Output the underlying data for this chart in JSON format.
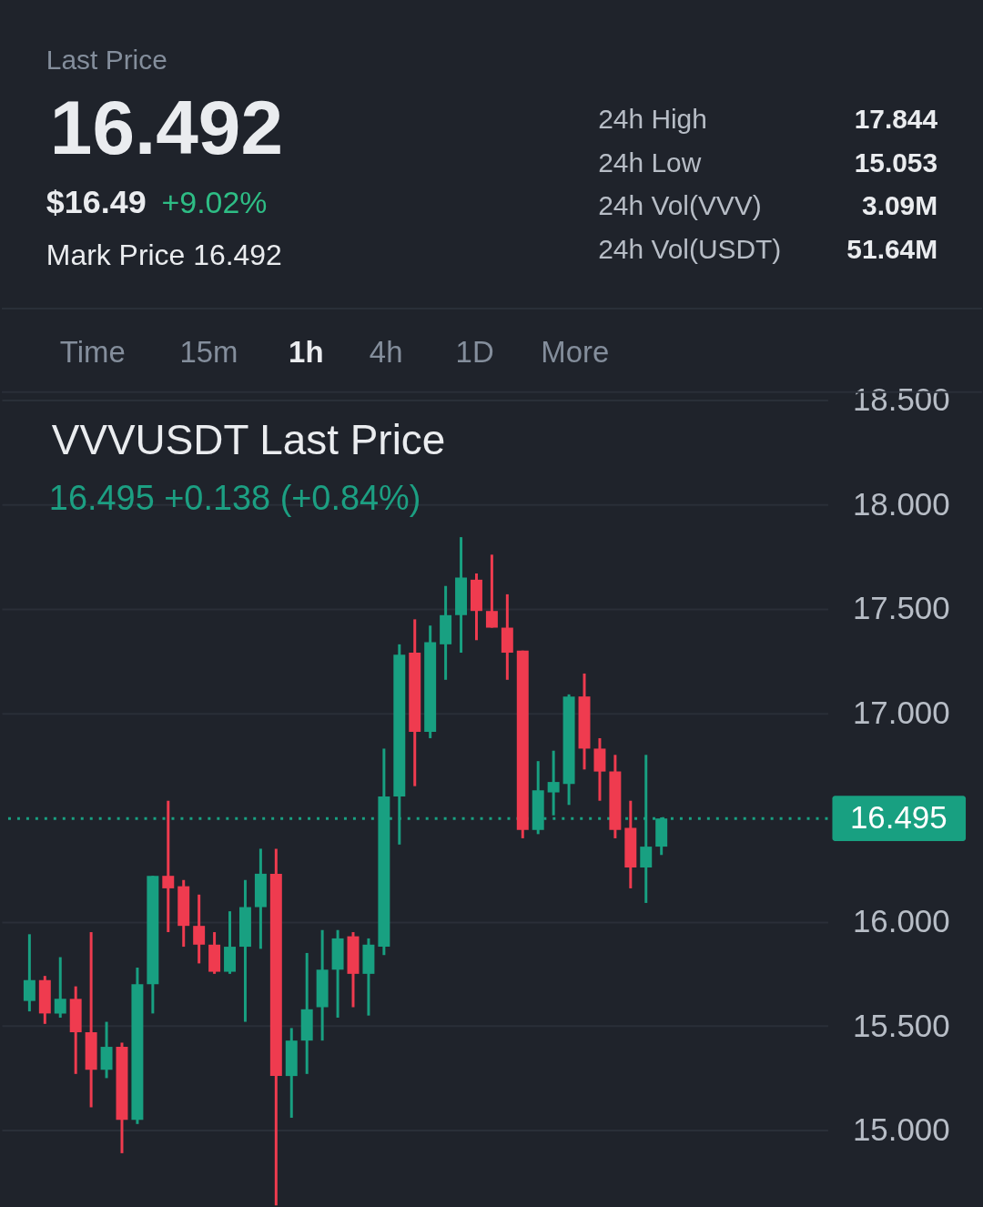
{
  "chart_data": [
    {
      "type": "other",
      "title": "Last Price",
      "annotations": [
        "16.492",
        "$16.49",
        "+9.02%",
        "Mark Price 16.492",
        "24h High",
        "17.844",
        "24h Low",
        "15.053",
        "24h Vol(VVV)",
        "3.09M",
        "24h Vol(USDT)",
        "51.64M",
        "Time",
        "15m",
        "1h",
        "4h",
        "1D",
        "More"
      ]
    },
    {
      "type": "candlestick",
      "title": "VVVUSDT Last Price",
      "subtitle": "16.495 +0.138 (+0.84%)",
      "categories": [
        null,
        null,
        null,
        null,
        null,
        null,
        null,
        null,
        null,
        null,
        null,
        null,
        null,
        null,
        null,
        null,
        null,
        null,
        null,
        null,
        null,
        null,
        null,
        null,
        null,
        null,
        null,
        null,
        null,
        null,
        null,
        null,
        null,
        null,
        null,
        null,
        null,
        null,
        null,
        null,
        null,
        null,
        null,
        null,
        null,
        null,
        null,
        null,
        null,
        null,
        null,
        null,
        null
      ],
      "ohlc": [
        null,
        [
          15.62,
          15.94,
          15.57,
          15.72
        ],
        [
          15.72,
          15.74,
          15.51,
          15.56
        ],
        [
          15.56,
          15.83,
          15.54,
          15.63
        ],
        [
          15.63,
          15.69,
          15.27,
          15.47
        ],
        [
          15.47,
          15.95,
          15.11,
          15.29
        ],
        [
          15.29,
          15.52,
          15.25,
          15.4
        ],
        [
          15.4,
          15.42,
          14.89,
          15.05
        ],
        [
          15.05,
          15.78,
          15.03,
          15.7
        ],
        [
          15.7,
          16.22,
          15.56,
          16.22
        ],
        [
          16.22,
          16.58,
          15.95,
          16.16
        ],
        [
          16.17,
          16.2,
          15.88,
          15.98
        ],
        [
          15.98,
          16.13,
          15.8,
          15.89
        ],
        [
          15.89,
          15.95,
          15.75,
          15.76
        ],
        [
          15.76,
          16.05,
          15.75,
          15.88
        ],
        [
          15.88,
          16.2,
          15.52,
          16.07
        ],
        [
          16.07,
          16.35,
          15.87,
          16.23
        ],
        [
          16.23,
          16.35,
          14.64,
          15.26
        ],
        [
          15.26,
          15.49,
          15.06,
          15.43
        ],
        [
          15.43,
          15.85,
          15.27,
          15.58
        ],
        [
          15.59,
          15.96,
          15.43,
          15.77
        ],
        [
          15.77,
          15.96,
          15.54,
          15.92
        ],
        [
          15.93,
          15.95,
          15.59,
          15.75
        ],
        [
          15.75,
          15.92,
          15.55,
          15.89
        ],
        [
          15.88,
          16.83,
          15.84,
          16.6
        ],
        [
          16.6,
          17.33,
          16.37,
          17.28
        ],
        [
          17.29,
          17.45,
          16.65,
          16.91
        ],
        [
          16.91,
          17.42,
          16.88,
          17.34
        ],
        [
          17.33,
          17.61,
          17.16,
          17.47
        ],
        [
          17.47,
          17.844,
          17.29,
          17.65
        ],
        [
          17.64,
          17.67,
          17.35,
          17.49
        ],
        [
          17.49,
          17.76,
          17.41,
          17.41
        ],
        [
          17.41,
          17.57,
          17.16,
          17.29
        ],
        [
          17.3,
          17.3,
          16.4,
          16.44
        ],
        [
          16.44,
          16.77,
          16.42,
          16.63
        ],
        [
          16.62,
          16.82,
          16.51,
          16.67
        ],
        [
          16.66,
          17.09,
          16.56,
          17.08
        ],
        [
          17.08,
          17.19,
          16.73,
          16.83
        ],
        [
          16.83,
          16.88,
          16.58,
          16.72
        ],
        [
          16.72,
          16.8,
          16.4,
          16.44
        ],
        [
          16.45,
          16.58,
          16.16,
          16.26
        ],
        [
          16.26,
          16.8,
          16.09,
          16.36
        ],
        [
          16.36,
          16.5,
          16.32,
          16.495
        ],
        null,
        null,
        null,
        null,
        null,
        null,
        null,
        null,
        null,
        null
      ],
      "colors": [
        null,
        "#18a081",
        "#ef3b4f",
        "#18a081",
        "#ef3b4f",
        "#ef3b4f",
        "#18a081",
        "#ef3b4f",
        "#18a081",
        "#18a081",
        "#ef3b4f",
        "#ef3b4f",
        "#ef3b4f",
        "#ef3b4f",
        "#18a081",
        "#18a081",
        "#18a081",
        "#ef3b4f",
        "#18a081",
        "#18a081",
        "#18a081",
        "#18a081",
        "#ef3b4f",
        "#18a081",
        "#18a081",
        "#18a081",
        "#ef3b4f",
        "#18a081",
        "#18a081",
        "#18a081",
        "#ef3b4f",
        "#ef3b4f",
        "#ef3b4f",
        "#ef3b4f",
        "#18a081",
        "#18a081",
        "#18a081",
        "#ef3b4f",
        "#ef3b4f",
        "#ef3b4f",
        "#ef3b4f",
        "#18a081",
        "#18a081",
        null,
        null,
        null,
        null,
        null,
        null,
        null,
        null,
        null,
        null
      ],
      "ylim": [
        14.64,
        18.54
      ],
      "yticks": [
        {
          "value": 15.0,
          "label": "15.000"
        },
        {
          "value": 15.5,
          "label": "15.500"
        },
        {
          "value": 16.0,
          "label": "16.000"
        },
        {
          "value": 17.0,
          "label": "17.000"
        },
        {
          "value": 17.5,
          "label": "17.500"
        },
        {
          "value": 18.0,
          "label": "18.000"
        },
        {
          "value": 18.5,
          "label": "18.500"
        }
      ],
      "grid": "y",
      "tick_labels": "y",
      "ref_lines": [
        {
          "axis": "y",
          "value": 16.495,
          "label": "16.495",
          "color": "#18a081",
          "line_style": "dotted"
        }
      ]
    }
  ]
}
